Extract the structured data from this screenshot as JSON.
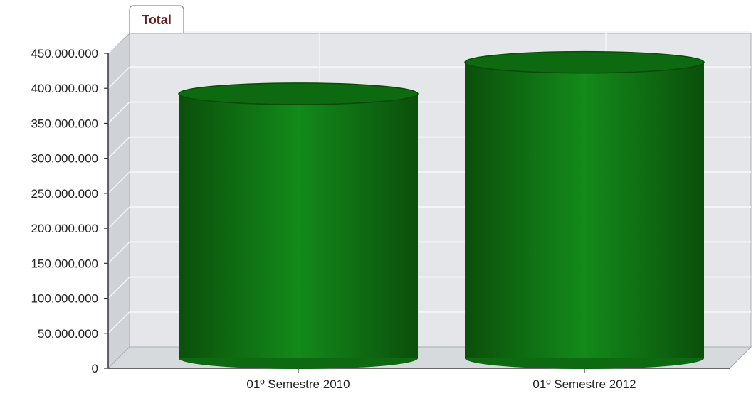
{
  "legend_tab": {
    "label": "Total"
  },
  "colors": {
    "bar_dark": "#0b4f0b",
    "bar_mid": "#138a1a",
    "bar_top": "#0e6a10",
    "bar_top_edge": "#0a4a0a",
    "plot_bg": "#e4e6ea",
    "wall_side": "#cfd2d6",
    "floor": "#d7dadd",
    "grid": "#f4f5f6"
  },
  "chart_data": {
    "type": "bar",
    "style": "3d-cylinder",
    "categories": [
      "01º Semestre 2010",
      "01º Semestre 2012"
    ],
    "series": [
      {
        "name": "Total",
        "values": [
          380000000,
          425000000
        ]
      }
    ],
    "yticks": [
      "0",
      "50.000.000",
      "100.000.000",
      "150.000.000",
      "200.000.000",
      "250.000.000",
      "300.000.000",
      "350.000.000",
      "400.000.000",
      "450.000.000"
    ],
    "ylim": [
      0,
      450000000
    ],
    "grid": true,
    "legend": "top-left tab"
  }
}
